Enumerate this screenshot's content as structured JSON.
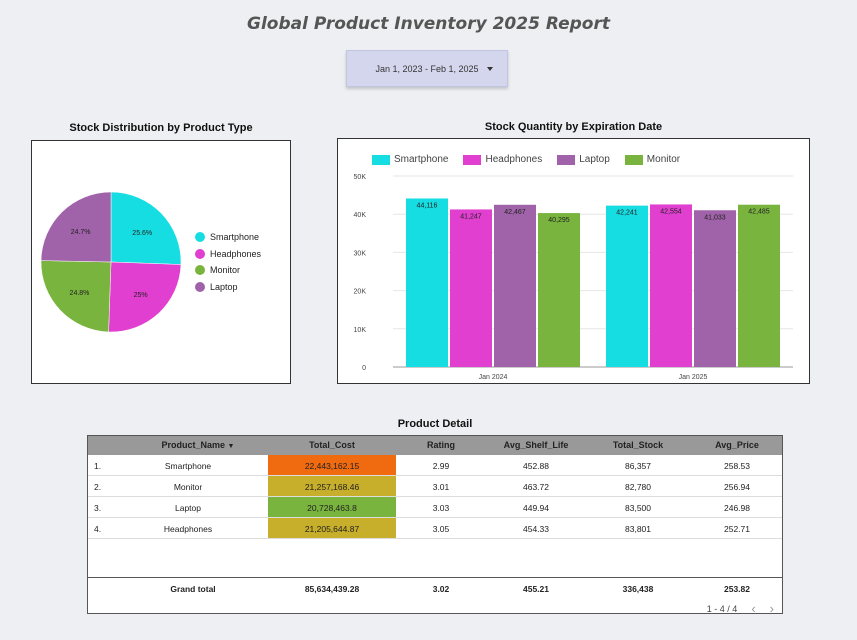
{
  "report": {
    "title": "Global Product Inventory 2025 Report",
    "date_range": "Jan 1, 2023 - Feb 1, 2025"
  },
  "pie": {
    "title": "Stock Distribution by Product Type",
    "legend": [
      "Smartphone",
      "Headphones",
      "Monitor",
      "Laptop"
    ],
    "slice_labels": [
      "25.6%",
      "25%",
      "24.8%",
      "24.7%"
    ]
  },
  "bar": {
    "title": "Stock Quantity by Expiration Date",
    "legend": [
      "Smartphone",
      "Headphones",
      "Laptop",
      "Monitor"
    ],
    "y_ticks": [
      "50K",
      "40K",
      "30K",
      "20K",
      "10K",
      "0"
    ],
    "x_ticks": [
      "Jan 2024",
      "Jan 2025"
    ],
    "value_labels_2024": [
      "44,116",
      "41,247",
      "42,467",
      "40,295"
    ],
    "value_labels_2025": [
      "42,241",
      "42,554",
      "41,033",
      "42,485"
    ]
  },
  "table": {
    "title": "Product Detail",
    "headers": [
      "Product_Name",
      "Total_Cost",
      "Rating",
      "Avg_Shelf_Life",
      "Total_Stock",
      "Avg_Price"
    ],
    "rows": [
      {
        "idx": "1.",
        "name": "Smartphone",
        "cost": "22,443,162.15",
        "rating": "2.99",
        "shelf": "452.88",
        "stock": "86,357",
        "price": "258.53"
      },
      {
        "idx": "2.",
        "name": "Monitor",
        "cost": "21,257,168.46",
        "rating": "3.01",
        "shelf": "463.72",
        "stock": "82,780",
        "price": "256.94"
      },
      {
        "idx": "3.",
        "name": "Laptop",
        "cost": "20,728,463.8",
        "rating": "3.03",
        "shelf": "449.94",
        "stock": "83,500",
        "price": "246.98"
      },
      {
        "idx": "4.",
        "name": "Headphones",
        "cost": "21,205,644.87",
        "rating": "3.05",
        "shelf": "454.33",
        "stock": "83,801",
        "price": "252.71"
      }
    ],
    "total": {
      "label": "Grand total",
      "cost": "85,634,439.28",
      "rating": "3.02",
      "shelf": "455.21",
      "stock": "336,438",
      "price": "253.82"
    },
    "pager": "1 - 4 / 4"
  },
  "chart_data": [
    {
      "type": "pie",
      "title": "Stock Distribution by Product Type",
      "categories": [
        "Smartphone",
        "Headphones",
        "Monitor",
        "Laptop"
      ],
      "values": [
        25.6,
        25,
        24.8,
        24.7
      ],
      "colors": [
        "#16dde2",
        "#e03fd0",
        "#79b43e",
        "#a062a8"
      ],
      "legend": "right"
    },
    {
      "type": "bar",
      "title": "Stock Quantity by Expiration Date",
      "categories": [
        "Jan 2024",
        "Jan 2025"
      ],
      "series": [
        {
          "name": "Smartphone",
          "values": [
            44116,
            42241
          ],
          "color": "#16dde2"
        },
        {
          "name": "Headphones",
          "values": [
            41247,
            42554
          ],
          "color": "#e03fd0"
        },
        {
          "name": "Laptop",
          "values": [
            42467,
            41033
          ],
          "color": "#a062a8"
        },
        {
          "name": "Monitor",
          "values": [
            40295,
            42485
          ],
          "color": "#79b43e"
        }
      ],
      "ylim": [
        0,
        50000
      ],
      "grid": true,
      "legend": "top"
    }
  ],
  "colors": {
    "cost_high": "#f06a0f",
    "cost_mid": "#c7ae2b",
    "cost_low": "#79b43e"
  }
}
